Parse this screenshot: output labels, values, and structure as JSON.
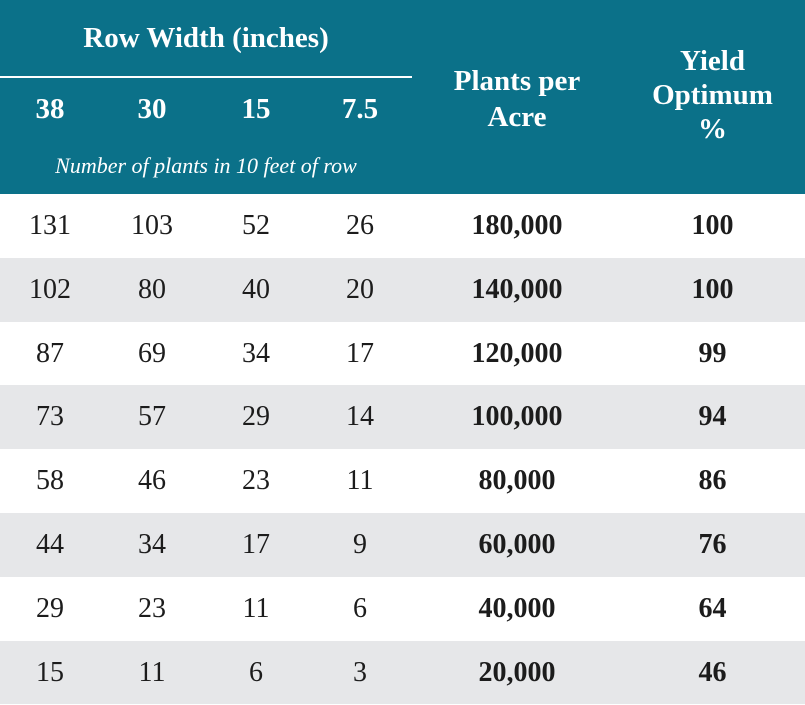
{
  "header": {
    "group_title": "Row Width (inches)",
    "row_widths": [
      "38",
      "30",
      "15",
      "7.5"
    ],
    "subnote": "Number of plants in 10 feet of row",
    "plants_per_acre": [
      "Plants per",
      "Acre"
    ],
    "yield_optimum": [
      "Yield",
      "Optimum",
      "%"
    ]
  },
  "colors": {
    "header_bg": "#0b7189",
    "shade_row": "#e6e7e9"
  },
  "rows": [
    [
      "131",
      "103",
      "52",
      "26",
      "180,000",
      "100"
    ],
    [
      "102",
      "80",
      "40",
      "20",
      "140,000",
      "100"
    ],
    [
      "87",
      "69",
      "34",
      "17",
      "120,000",
      "99"
    ],
    [
      "73",
      "57",
      "29",
      "14",
      "100,000",
      "94"
    ],
    [
      "58",
      "46",
      "23",
      "11",
      "80,000",
      "86"
    ],
    [
      "44",
      "34",
      "17",
      "9",
      "60,000",
      "76"
    ],
    [
      "29",
      "23",
      "11",
      "6",
      "40,000",
      "64"
    ],
    [
      "15",
      "11",
      "6",
      "3",
      "20,000",
      "46"
    ]
  ]
}
